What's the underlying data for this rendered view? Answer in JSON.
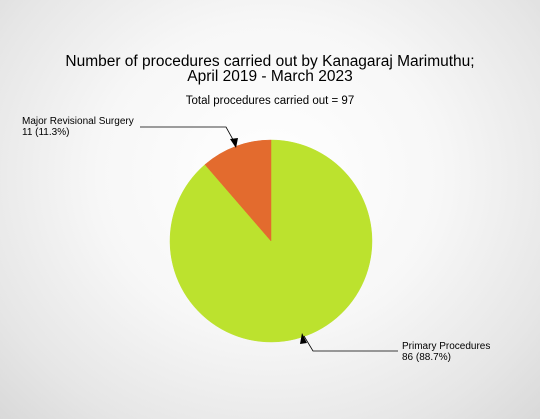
{
  "chart_data": {
    "type": "pie",
    "title_line1": "Number of procedures carried out by Kanagaraj Marimuthu;",
    "title_line2": "April 2019 - March 2023",
    "subtitle": "Total procedures carried out = 97",
    "slices": [
      {
        "name": "Primary Procedures",
        "value": 86,
        "label": "86 (88.7%)",
        "color": "#bce22e"
      },
      {
        "name": "Major Revisional Surgery",
        "value": 11,
        "label": "11 (11.3%)",
        "color": "#e36b2e"
      }
    ]
  }
}
